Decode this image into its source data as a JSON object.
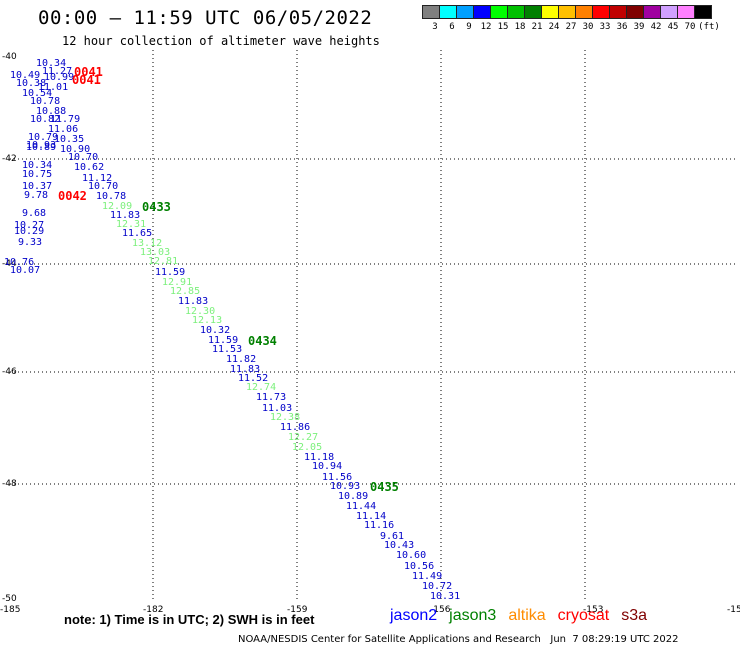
{
  "header": {
    "title": "00:00 — 11:59 UTC 06/05/2022",
    "subtitle": "12 hour collection of altimeter wave heights"
  },
  "colorbar": {
    "unit": "(ft)",
    "bins": [
      {
        "label": "3",
        "color": "#808080"
      },
      {
        "label": "6",
        "color": "#00ffff"
      },
      {
        "label": "9",
        "color": "#00a0ff"
      },
      {
        "label": "12",
        "color": "#0000ff"
      },
      {
        "label": "15",
        "color": "#00ff00"
      },
      {
        "label": "18",
        "color": "#00c000"
      },
      {
        "label": "21",
        "color": "#008000"
      },
      {
        "label": "24",
        "color": "#ffff00"
      },
      {
        "label": "27",
        "color": "#ffc000"
      },
      {
        "label": "30",
        "color": "#ff8000"
      },
      {
        "label": "33",
        "color": "#ff0000"
      },
      {
        "label": "36",
        "color": "#c00000"
      },
      {
        "label": "39",
        "color": "#800000"
      },
      {
        "label": "42",
        "color": "#a000a0"
      },
      {
        "label": "45",
        "color": "#d0a0ff"
      },
      {
        "label": "70",
        "color": "#ff80ff"
      },
      {
        "label": "",
        "color": "#000000"
      }
    ]
  },
  "map": {
    "lon_ticks": [
      "-185",
      "-182",
      "-159",
      "-156",
      "-153",
      "-15"
    ],
    "lat_ticks": [
      "-40",
      "-42",
      "-44",
      "-46",
      "-48",
      "-50"
    ],
    "pass_labels": [
      {
        "text": "0041",
        "color": "#ff0000"
      },
      {
        "text": "0041",
        "color": "#ff0000"
      },
      {
        "text": "0042",
        "color": "#ff0000"
      },
      {
        "text": "0433",
        "color": "#008000"
      },
      {
        "text": "0434",
        "color": "#008000"
      },
      {
        "text": "0435",
        "color": "#008000"
      }
    ],
    "observations": [
      {
        "v": "10.34",
        "c": "blue"
      },
      {
        "v": "11.27",
        "c": "blue"
      },
      {
        "v": "10.49",
        "c": "blue"
      },
      {
        "v": "10.99",
        "c": "blue"
      },
      {
        "v": "10.38",
        "c": "blue"
      },
      {
        "v": "11.01",
        "c": "blue"
      },
      {
        "v": "10.54",
        "c": "blue"
      },
      {
        "v": "10.78",
        "c": "blue"
      },
      {
        "v": "10.88",
        "c": "blue"
      },
      {
        "v": "10.82",
        "c": "blue"
      },
      {
        "v": "11.79",
        "c": "blue"
      },
      {
        "v": "11.06",
        "c": "blue"
      },
      {
        "v": "10.79",
        "c": "blue"
      },
      {
        "v": "10.35",
        "c": "blue"
      },
      {
        "v": "10.93",
        "c": "blue"
      },
      {
        "v": "10.89",
        "c": "blue"
      },
      {
        "v": "10.90",
        "c": "blue"
      },
      {
        "v": "10.70",
        "c": "blue"
      },
      {
        "v": "10.34",
        "c": "blue"
      },
      {
        "v": "10.62",
        "c": "blue"
      },
      {
        "v": "10.75",
        "c": "blue"
      },
      {
        "v": "11.12",
        "c": "blue"
      },
      {
        "v": "10.37",
        "c": "blue"
      },
      {
        "v": "10.70",
        "c": "blue"
      },
      {
        "v": "9.78",
        "c": "blue"
      },
      {
        "v": "10.78",
        "c": "blue"
      },
      {
        "v": "12.09",
        "c": "green"
      },
      {
        "v": "11.83",
        "c": "blue"
      },
      {
        "v": "9.68",
        "c": "blue"
      },
      {
        "v": "12.31",
        "c": "green"
      },
      {
        "v": "10.27",
        "c": "blue"
      },
      {
        "v": "10.29",
        "c": "blue"
      },
      {
        "v": "11.65",
        "c": "blue"
      },
      {
        "v": "9.33",
        "c": "blue"
      },
      {
        "v": "13.12",
        "c": "green"
      },
      {
        "v": "13.03",
        "c": "green"
      },
      {
        "v": "10.76",
        "c": "blue"
      },
      {
        "v": "12.81",
        "c": "green"
      },
      {
        "v": "10.07",
        "c": "blue"
      },
      {
        "v": "11.59",
        "c": "blue"
      },
      {
        "v": "12.91",
        "c": "green"
      },
      {
        "v": "12.85",
        "c": "green"
      },
      {
        "v": "11.83",
        "c": "blue"
      },
      {
        "v": "12.30",
        "c": "green"
      },
      {
        "v": "12.13",
        "c": "green"
      },
      {
        "v": "10.32",
        "c": "blue"
      },
      {
        "v": "11.59",
        "c": "blue"
      },
      {
        "v": "11.53",
        "c": "blue"
      },
      {
        "v": "11.82",
        "c": "blue"
      },
      {
        "v": "11.83",
        "c": "blue"
      },
      {
        "v": "11.52",
        "c": "blue"
      },
      {
        "v": "12.74",
        "c": "green"
      },
      {
        "v": "11.73",
        "c": "blue"
      },
      {
        "v": "11.03",
        "c": "blue"
      },
      {
        "v": "12.38",
        "c": "green"
      },
      {
        "v": "11.86",
        "c": "blue"
      },
      {
        "v": "12.27",
        "c": "green"
      },
      {
        "v": "12.05",
        "c": "green"
      },
      {
        "v": "11.18",
        "c": "blue"
      },
      {
        "v": "10.94",
        "c": "blue"
      },
      {
        "v": "11.56",
        "c": "blue"
      },
      {
        "v": "10.93",
        "c": "blue"
      },
      {
        "v": "10.89",
        "c": "blue"
      },
      {
        "v": "11.44",
        "c": "blue"
      },
      {
        "v": "11.14",
        "c": "blue"
      },
      {
        "v": "11.16",
        "c": "blue"
      },
      {
        "v": "9.61",
        "c": "blue"
      },
      {
        "v": "10.43",
        "c": "blue"
      },
      {
        "v": "10.60",
        "c": "blue"
      },
      {
        "v": "10.56",
        "c": "blue"
      },
      {
        "v": "11.49",
        "c": "blue"
      },
      {
        "v": "10.72",
        "c": "blue"
      },
      {
        "v": "10.31",
        "c": "blue"
      }
    ]
  },
  "note": "note: 1) Time is in UTC; 2) SWH is in feet",
  "legend": [
    {
      "label": "jason2",
      "color": "#0000ff"
    },
    {
      "label": "jason3",
      "color": "#008000"
    },
    {
      "label": "altika",
      "color": "#ff8c00"
    },
    {
      "label": "cryosat",
      "color": "#ff0000"
    },
    {
      "label": "s3a",
      "color": "#800000"
    }
  ],
  "footer": "NOAA/NESDIS Center for Satellite Applications and Research   Jun  7 08:29:19 UTC 2022"
}
